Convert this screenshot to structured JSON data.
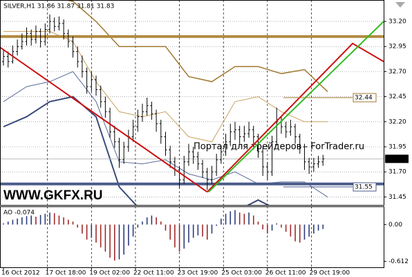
{
  "chart_data": {
    "type": "ohlc",
    "header": "SILVER,H1  31.86 31.87 31.81 31.83",
    "watermark": "Портал для трейдеров - ForTrader.ru",
    "brand": "WWW.GKFX.RU",
    "xlim": [
      -0.75,
      82.1
    ],
    "xticks": [
      {
        "value": 0,
        "label": "16 Oct 2012"
      },
      {
        "value": 9.5,
        "label": "17 Oct 18:00"
      },
      {
        "value": 19,
        "label": "19 Oct 02:00"
      },
      {
        "value": 28.5,
        "label": "22 Oct 11:00"
      },
      {
        "value": 38,
        "label": "23 Oct 19:00"
      },
      {
        "value": 47.5,
        "label": "25 Oct 03:00"
      },
      {
        "value": 57,
        "label": "26 Oct 11:00"
      },
      {
        "value": 66.5,
        "label": "29 Oct 19:00"
      }
    ],
    "ylim": [
      31.37,
      33.4
    ],
    "yticks": [
      {
        "value": 33.2,
        "label": "33.20"
      },
      32.95,
      {
        "value": 32.7,
        "label": "32.70"
      },
      32.45,
      {
        "value": 32.2,
        "label": "32.20"
      },
      31.95,
      {
        "value": 31.7,
        "label": "31.70"
      },
      31.45
    ],
    "bar_color": "#000000",
    "ohlc": [
      [
        32.8,
        32.92,
        32.76,
        32.85
      ],
      [
        32.85,
        32.9,
        32.74,
        32.8
      ],
      [
        32.8,
        32.96,
        32.78,
        32.9
      ],
      [
        32.9,
        33.02,
        32.86,
        32.95
      ],
      [
        32.95,
        33.08,
        32.92,
        33.0
      ],
      [
        33.0,
        33.14,
        32.96,
        33.08
      ],
      [
        33.08,
        33.12,
        32.96,
        33.02
      ],
      [
        33.02,
        33.16,
        32.98,
        33.1
      ],
      [
        33.1,
        33.13,
        32.94,
        33.0
      ],
      [
        33.0,
        33.18,
        32.96,
        33.12
      ],
      [
        33.12,
        33.27,
        33.08,
        33.2
      ],
      [
        33.2,
        33.24,
        33.1,
        33.15
      ],
      [
        33.15,
        33.25,
        33.11,
        33.18
      ],
      [
        33.18,
        33.22,
        33.02,
        33.08
      ],
      [
        33.08,
        33.12,
        32.94,
        33.0
      ],
      [
        33.0,
        33.05,
        32.84,
        32.9
      ],
      [
        32.9,
        32.95,
        32.74,
        32.8
      ],
      [
        32.8,
        32.86,
        32.64,
        32.7
      ],
      [
        32.7,
        32.74,
        32.48,
        32.55
      ],
      [
        32.55,
        32.7,
        32.5,
        32.62
      ],
      [
        32.62,
        32.66,
        32.46,
        32.52
      ],
      [
        32.52,
        32.56,
        32.34,
        32.4
      ],
      [
        32.4,
        32.45,
        32.24,
        32.3
      ],
      [
        32.3,
        32.34,
        32.04,
        32.1
      ],
      [
        32.1,
        32.16,
        31.94,
        32.0
      ],
      [
        32.0,
        32.04,
        31.74,
        31.82
      ],
      [
        31.82,
        32.0,
        31.78,
        31.95
      ],
      [
        31.95,
        32.12,
        31.9,
        32.05
      ],
      [
        32.05,
        32.22,
        32.0,
        32.15
      ],
      [
        32.15,
        32.32,
        32.1,
        32.25
      ],
      [
        32.25,
        32.38,
        32.2,
        32.3
      ],
      [
        32.3,
        32.44,
        32.26,
        32.36
      ],
      [
        32.36,
        32.4,
        32.22,
        32.28
      ],
      [
        32.28,
        32.32,
        32.1,
        32.18
      ],
      [
        32.18,
        32.22,
        31.98,
        32.05
      ],
      [
        32.05,
        32.1,
        31.86,
        31.92
      ],
      [
        31.92,
        31.96,
        31.74,
        31.8
      ],
      [
        31.8,
        31.85,
        31.66,
        31.72
      ],
      [
        31.72,
        31.76,
        31.54,
        31.62
      ],
      [
        31.62,
        31.86,
        31.58,
        31.8
      ],
      [
        31.8,
        31.98,
        31.76,
        31.9
      ],
      [
        31.9,
        31.95,
        31.78,
        31.85
      ],
      [
        31.85,
        31.9,
        31.72,
        31.78
      ],
      [
        31.78,
        31.82,
        31.64,
        31.7
      ],
      [
        31.7,
        31.74,
        31.52,
        31.62
      ],
      [
        31.62,
        31.76,
        31.58,
        31.7
      ],
      [
        31.7,
        31.88,
        31.66,
        31.82
      ],
      [
        31.82,
        31.96,
        31.78,
        31.9
      ],
      [
        31.9,
        32.08,
        31.86,
        32.0
      ],
      [
        32.0,
        32.18,
        31.96,
        32.1
      ],
      [
        32.1,
        32.2,
        32.02,
        32.12
      ],
      [
        32.12,
        32.16,
        31.98,
        32.05
      ],
      [
        32.05,
        32.16,
        32.0,
        32.08
      ],
      [
        32.08,
        32.2,
        32.04,
        32.12
      ],
      [
        32.12,
        32.16,
        31.98,
        32.05
      ],
      [
        32.05,
        32.08,
        31.84,
        31.9
      ],
      [
        31.9,
        31.94,
        31.66,
        31.75
      ],
      [
        31.75,
        31.8,
        31.62,
        31.7
      ],
      [
        31.7,
        32.06,
        31.66,
        32.0
      ],
      [
        32.0,
        32.34,
        31.96,
        32.2
      ],
      [
        32.2,
        32.26,
        32.08,
        32.15
      ],
      [
        32.15,
        32.2,
        32.04,
        32.1
      ],
      [
        32.1,
        32.22,
        32.06,
        32.15
      ],
      [
        32.15,
        32.18,
        31.98,
        32.05
      ],
      [
        32.05,
        32.08,
        31.88,
        31.95
      ],
      [
        31.95,
        31.98,
        31.72,
        31.8
      ],
      [
        31.8,
        31.84,
        31.68,
        31.75
      ],
      [
        31.75,
        31.84,
        31.7,
        31.78
      ],
      [
        31.78,
        31.86,
        31.74,
        31.8
      ],
      [
        31.8,
        31.87,
        31.76,
        31.83
      ]
    ],
    "band_x": [
      0,
      5,
      10,
      15,
      20,
      25,
      30,
      35,
      40,
      45,
      50,
      55,
      60,
      65,
      70
    ],
    "bands": [
      {
        "color": "#a07830",
        "width": 1.5,
        "values": [
          33.45,
          33.45,
          33.45,
          33.4,
          33.2,
          32.95,
          32.95,
          32.95,
          32.65,
          32.6,
          32.75,
          32.75,
          32.68,
          32.72,
          32.5
        ]
      },
      {
        "color": "#c8a060",
        "width": 1,
        "values": [
          33.1,
          33.1,
          33.1,
          33.0,
          32.6,
          32.3,
          32.25,
          32.3,
          32.05,
          32.0,
          32.4,
          32.45,
          32.3,
          32.2,
          32.2
        ]
      },
      {
        "color": "#5a6a9a",
        "width": 1,
        "values": [
          32.4,
          32.55,
          32.6,
          32.7,
          32.4,
          31.8,
          31.78,
          31.82,
          31.68,
          31.62,
          31.7,
          31.58,
          31.6,
          31.6,
          31.45
        ]
      },
      {
        "color": "#3a4a7a",
        "width": 2,
        "values": [
          32.15,
          32.25,
          32.4,
          32.45,
          32.25,
          31.55,
          31.3,
          31.3,
          31.3,
          31.3,
          31.3,
          31.42,
          31.3,
          31.3,
          31.3
        ]
      }
    ],
    "levels": [
      {
        "value": 33.05,
        "color": "#b08a40"
      },
      {
        "value": 31.58,
        "color": "#4a5a8a"
      }
    ],
    "price_labels": [
      {
        "value": 32.44,
        "color": "#a07830"
      },
      {
        "value": 31.55,
        "color": "#4a5a8a"
      }
    ],
    "current_price": 31.83,
    "trendlines": [
      {
        "color": "#cc1010",
        "x": [
          -0.7,
          44
        ],
        "values": [
          32.94,
          31.5
        ]
      },
      {
        "color": "#cc1010",
        "x": [
          44,
          75.4,
          82.1
        ],
        "values": [
          31.5,
          32.98,
          32.8
        ]
      },
      {
        "color": "#33bb22",
        "x": [
          44.3,
          82.1
        ],
        "values": [
          31.5,
          33.2
        ]
      }
    ],
    "ao": {
      "label": "AO -0.074",
      "ylim": [
        -0.7,
        0.28
      ],
      "yticks": [
        {
          "value": 0,
          "label": "0.00"
        },
        -0.612
      ],
      "up_color": "#2c3c7c",
      "down_color": "#a02828",
      "values": [
        0.02,
        0.05,
        0.08,
        0.1,
        0.12,
        0.14,
        0.15,
        0.13,
        0.16,
        0.18,
        0.2,
        0.19,
        0.15,
        0.12,
        0.08,
        0.05,
        -0.05,
        -0.15,
        -0.25,
        -0.22,
        -0.3,
        -0.38,
        -0.45,
        -0.55,
        -0.6,
        -0.58,
        -0.5,
        -0.35,
        -0.2,
        -0.05,
        0.05,
        0.12,
        0.15,
        0.12,
        0.05,
        -0.1,
        -0.25,
        -0.38,
        -0.45,
        -0.4,
        -0.3,
        -0.22,
        -0.18,
        -0.2,
        -0.25,
        -0.15,
        -0.02,
        0.1,
        0.18,
        0.22,
        0.24,
        0.2,
        0.18,
        0.2,
        0.15,
        0.05,
        -0.08,
        -0.15,
        -0.1,
        0.02,
        -0.05,
        -0.12,
        -0.2,
        -0.28,
        -0.3,
        -0.25,
        -0.2,
        -0.15,
        -0.1,
        -0.074
      ]
    }
  }
}
